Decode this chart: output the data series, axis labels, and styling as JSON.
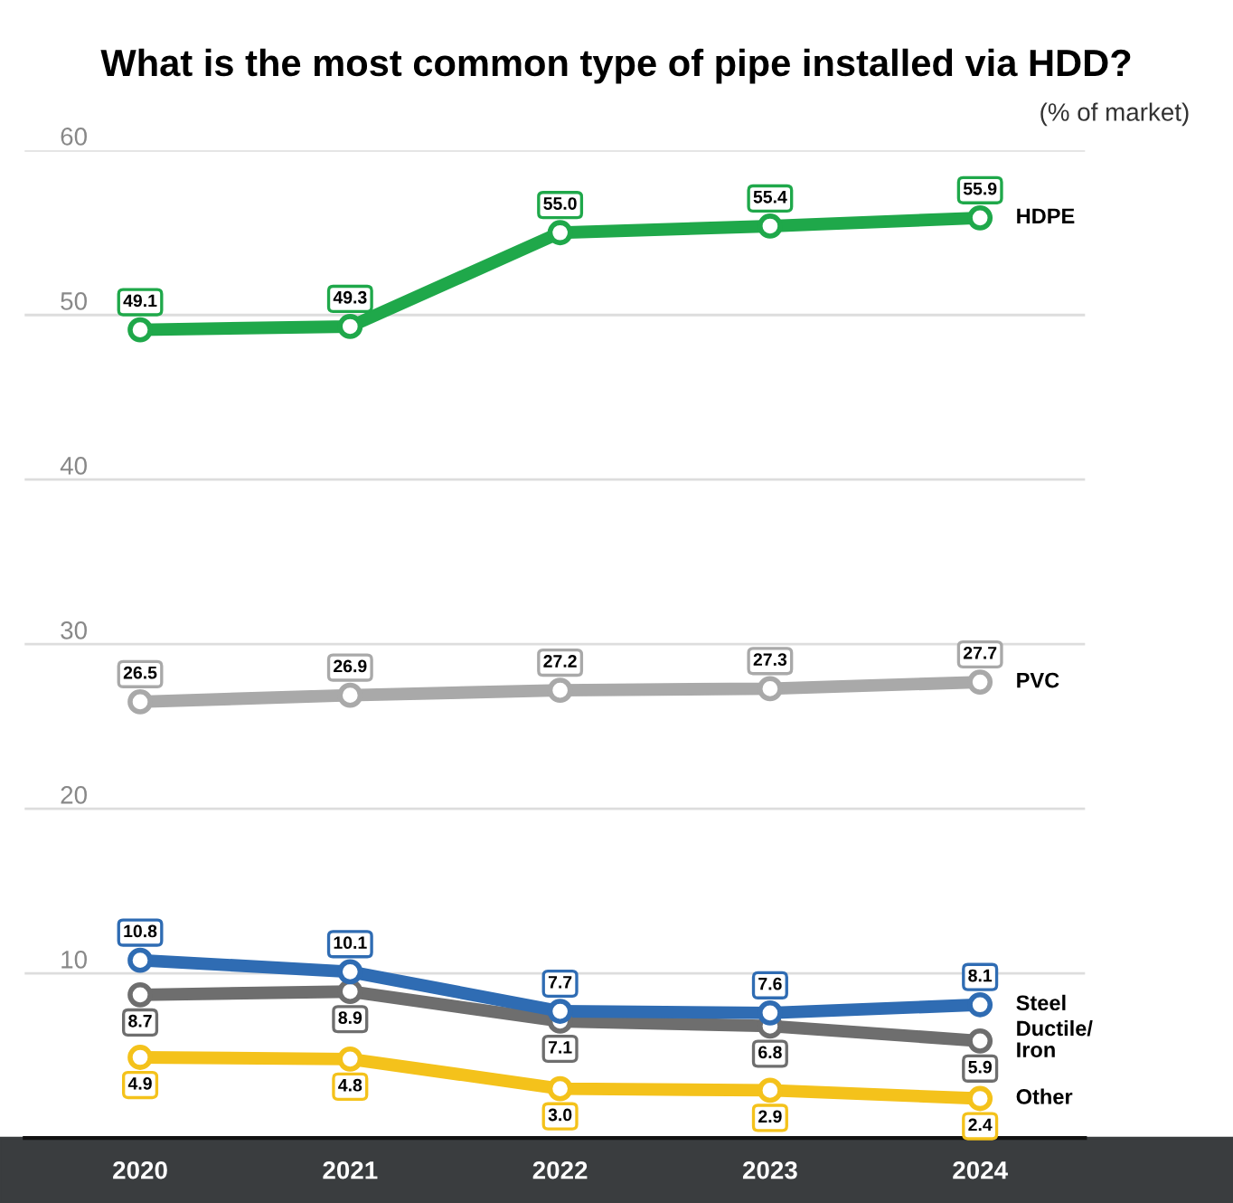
{
  "chart_data": {
    "type": "line",
    "title": "What is the most common type of pipe installed via HDD?",
    "subtitle": "(% of market)",
    "categories": [
      "2020",
      "2021",
      "2022",
      "2023",
      "2024"
    ],
    "series": [
      {
        "name": "HDPE",
        "color": "#1fa84a",
        "values": [
          49.1,
          49.3,
          55.0,
          55.4,
          55.9
        ],
        "value_labels": [
          "49.1",
          "49.3",
          "55.0",
          "55.4",
          "55.9"
        ]
      },
      {
        "name": "PVC",
        "color": "#a9a9a9",
        "values": [
          26.5,
          26.9,
          27.2,
          27.3,
          27.7
        ],
        "value_labels": [
          "26.5",
          "26.9",
          "27.2",
          "27.3",
          "27.7"
        ]
      },
      {
        "name": "Steel",
        "color": "#2f6cb3",
        "values": [
          10.8,
          10.1,
          7.7,
          7.6,
          8.1
        ],
        "value_labels": [
          "10.8",
          "10.1",
          "7.7",
          "7.6",
          "8.1"
        ]
      },
      {
        "name": "Ductile/\nIron",
        "color": "#6e6e6e",
        "values": [
          8.7,
          8.9,
          7.1,
          6.8,
          5.9
        ],
        "value_labels": [
          "8.7",
          "8.9",
          "7.1",
          "6.8",
          "5.9"
        ]
      },
      {
        "name": "Other",
        "color": "#f4c21b",
        "values": [
          4.9,
          4.8,
          3.0,
          2.9,
          2.4
        ],
        "value_labels": [
          "4.9",
          "4.8",
          "3.0",
          "2.9",
          "2.4"
        ]
      }
    ],
    "ylim": [
      0,
      60
    ],
    "yticks": [
      10,
      20,
      30,
      40,
      50,
      60
    ],
    "grid": "y",
    "marker": "circle",
    "line_style": "solid"
  }
}
